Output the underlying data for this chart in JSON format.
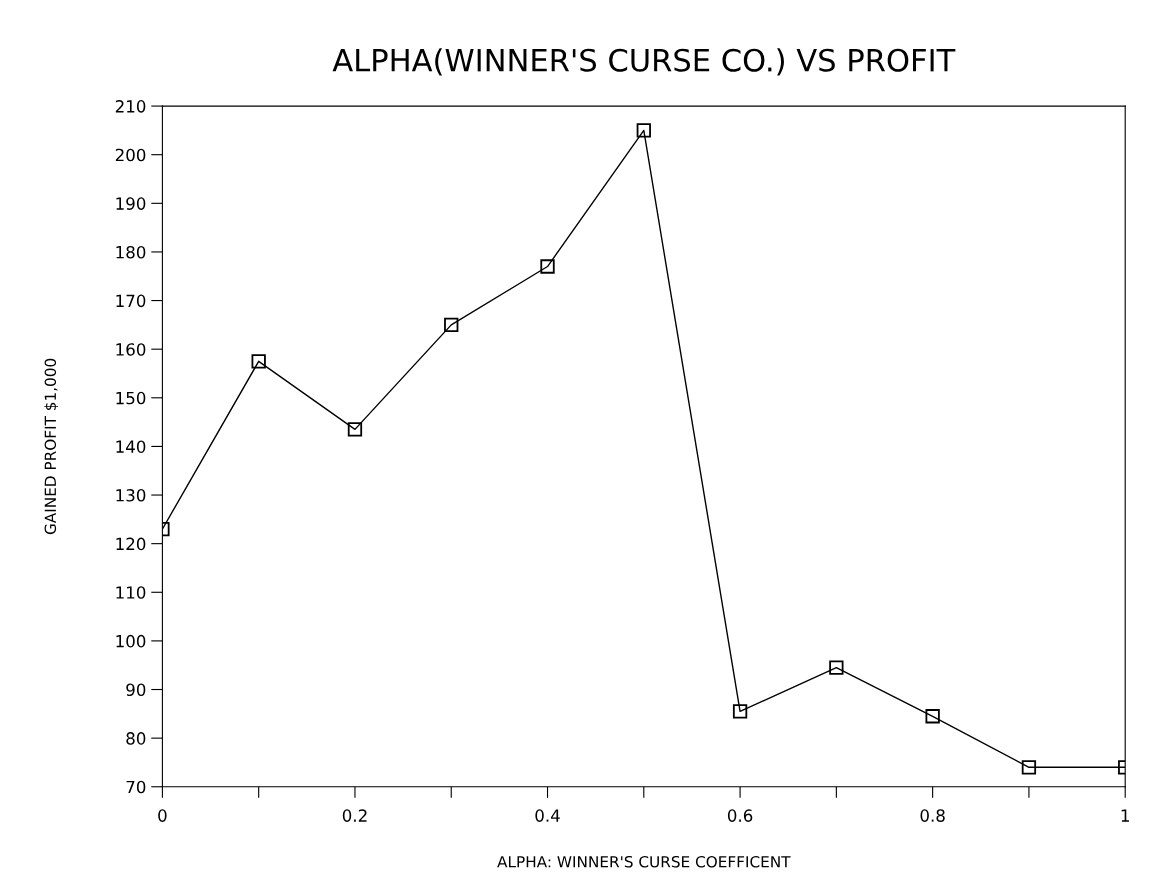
{
  "chart_data": {
    "type": "line",
    "title": "ALPHA(WINNER'S CURSE CO.) VS PROFIT",
    "xlabel": "ALPHA: WINNER'S CURSE COEFFICENT",
    "ylabel": "GAINED PROFIT $1,000",
    "x": [
      0,
      0.1,
      0.2,
      0.3,
      0.4,
      0.5,
      0.6,
      0.7,
      0.8,
      0.9,
      1
    ],
    "series": [
      {
        "color": "#000000",
        "values": [
          123,
          157.5,
          143.5,
          165,
          177,
          205,
          85.5,
          94.5,
          84.5,
          74,
          74
        ]
      }
    ],
    "xlim": [
      0,
      1
    ],
    "ylim": [
      70,
      210
    ],
    "xticks": [
      0,
      {
        "value": 0.1,
        "label": null
      },
      0.2,
      {
        "value": 0.3,
        "label": null
      },
      0.4,
      {
        "value": 0.5,
        "label": null
      },
      0.6,
      {
        "value": 0.7,
        "label": null
      },
      0.8,
      {
        "value": 0.9,
        "label": null
      },
      1
    ],
    "yticks": [
      70,
      80,
      90,
      100,
      110,
      120,
      130,
      140,
      150,
      160,
      170,
      180,
      190,
      200,
      210
    ],
    "marker": "square",
    "line_style": "solid",
    "grid": false
  }
}
